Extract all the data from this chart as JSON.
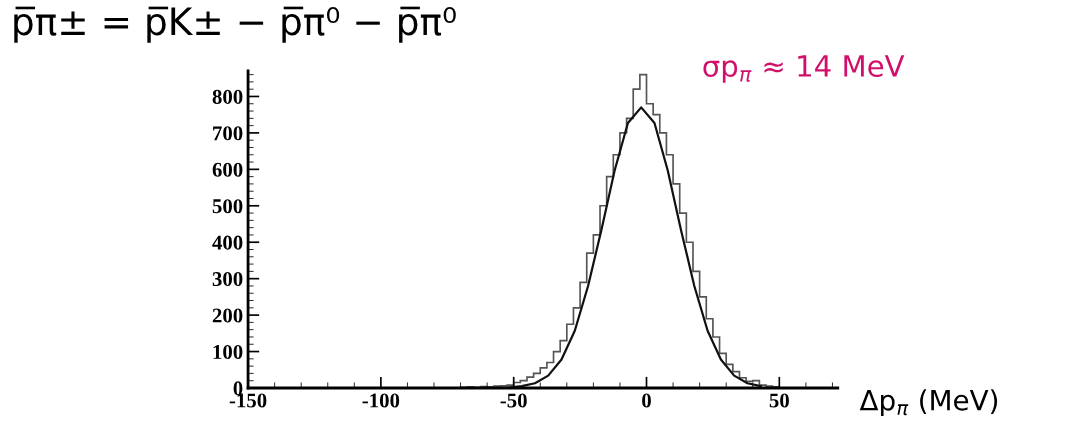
{
  "chart_data": {
    "type": "histogram",
    "title": "p̅π± = p̅K± − p̅π⁰ − p̅π⁰",
    "xlabel": "Δp$_{π}$ (MeV)",
    "annotations": [
      "σp$_{π}$ ≈ 14 MeV"
    ],
    "bins": [
      -70,
      -67.5,
      -65,
      -62.5,
      -60,
      -57.5,
      -55,
      -52.5,
      -50,
      -47.5,
      -45,
      -42.5,
      -40,
      -37.5,
      -35,
      -32.5,
      -30,
      -27.5,
      -25,
      -22.5,
      -20,
      -17.5,
      -15,
      -12.5,
      -10,
      -7.5,
      -5,
      -2.5,
      0,
      2.5,
      5,
      7.5,
      10,
      12.5,
      15,
      17.5,
      20,
      22.5,
      25,
      27.5,
      30,
      32.5,
      35,
      37.5,
      40,
      42.5,
      45,
      47.5,
      50
    ],
    "values": [
      2,
      3,
      2,
      4,
      3,
      5,
      6,
      8,
      15,
      20,
      30,
      40,
      55,
      70,
      100,
      130,
      175,
      220,
      290,
      370,
      420,
      500,
      580,
      640,
      700,
      740,
      820,
      860,
      780,
      750,
      700,
      640,
      560,
      480,
      400,
      320,
      250,
      190,
      140,
      95,
      65,
      45,
      28,
      18,
      20,
      8,
      5,
      3
    ],
    "color": "#555555",
    "series": [
      {
        "type": "line",
        "color": "#111111",
        "x": [
          -52,
          -47,
          -42,
          -37,
          -32,
          -27,
          -22,
          -17,
          -12,
          -7,
          -2,
          3,
          8,
          13,
          18,
          23,
          28,
          33,
          38,
          43
        ],
        "values": [
          1,
          5,
          13,
          34,
          78,
          157,
          280,
          433,
          597,
          727,
          770,
          727,
          597,
          433,
          280,
          157,
          78,
          34,
          13,
          5
        ]
      }
    ],
    "xlim": [
      -150,
      72
    ],
    "ylim": [
      0,
      870
    ],
    "xticks": [
      -150,
      -100,
      -50,
      0,
      50
    ],
    "yticks": [
      0,
      100,
      200,
      300,
      400,
      500,
      600,
      700,
      800
    ],
    "grid": false,
    "legend": false
  }
}
